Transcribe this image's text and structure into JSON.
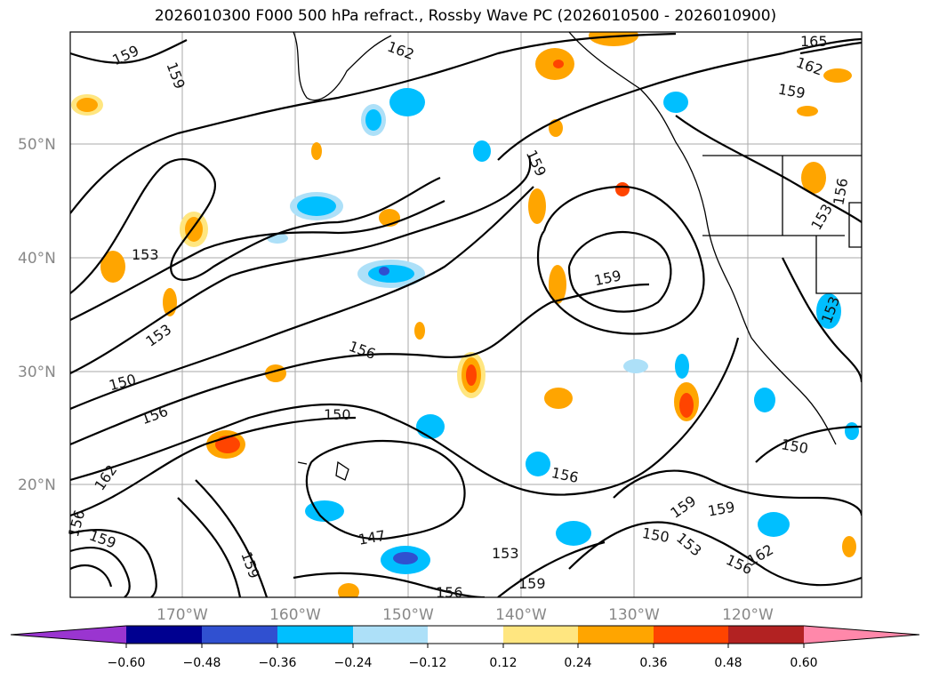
{
  "title": "2026010300 F000 500 hPa refract., Rossby Wave PC (2026010500 - 2026010900)",
  "lat_labels": [
    "50°N",
    "40°N",
    "30°N",
    "20°N"
  ],
  "lon_labels": [
    "170°W",
    "160°W",
    "150°W",
    "140°W",
    "130°W",
    "120°W"
  ],
  "contour_labels": [
    "159",
    "159",
    "162",
    "165",
    "162",
    "159",
    "156",
    "159",
    "159",
    "153",
    "153",
    "153",
    "150",
    "156",
    "156",
    "150",
    "162",
    "156",
    "159",
    "147",
    "153",
    "156",
    "159",
    "159",
    "162",
    "156",
    "150",
    "153",
    "150",
    "156",
    "159",
    "159",
    "153"
  ],
  "colorbar": {
    "ticks": [
      "−0.60",
      "−0.48",
      "−0.36",
      "−0.24",
      "−0.12",
      "0.12",
      "0.24",
      "0.36",
      "0.48",
      "0.60"
    ],
    "colors": [
      "#9a35d0",
      "#000090",
      "#3050d0",
      "#00bfff",
      "#ade0f8",
      "#ffffff",
      "#ffe680",
      "#ffa500",
      "#ff4400",
      "#b22222",
      "#ff88aa"
    ]
  }
}
